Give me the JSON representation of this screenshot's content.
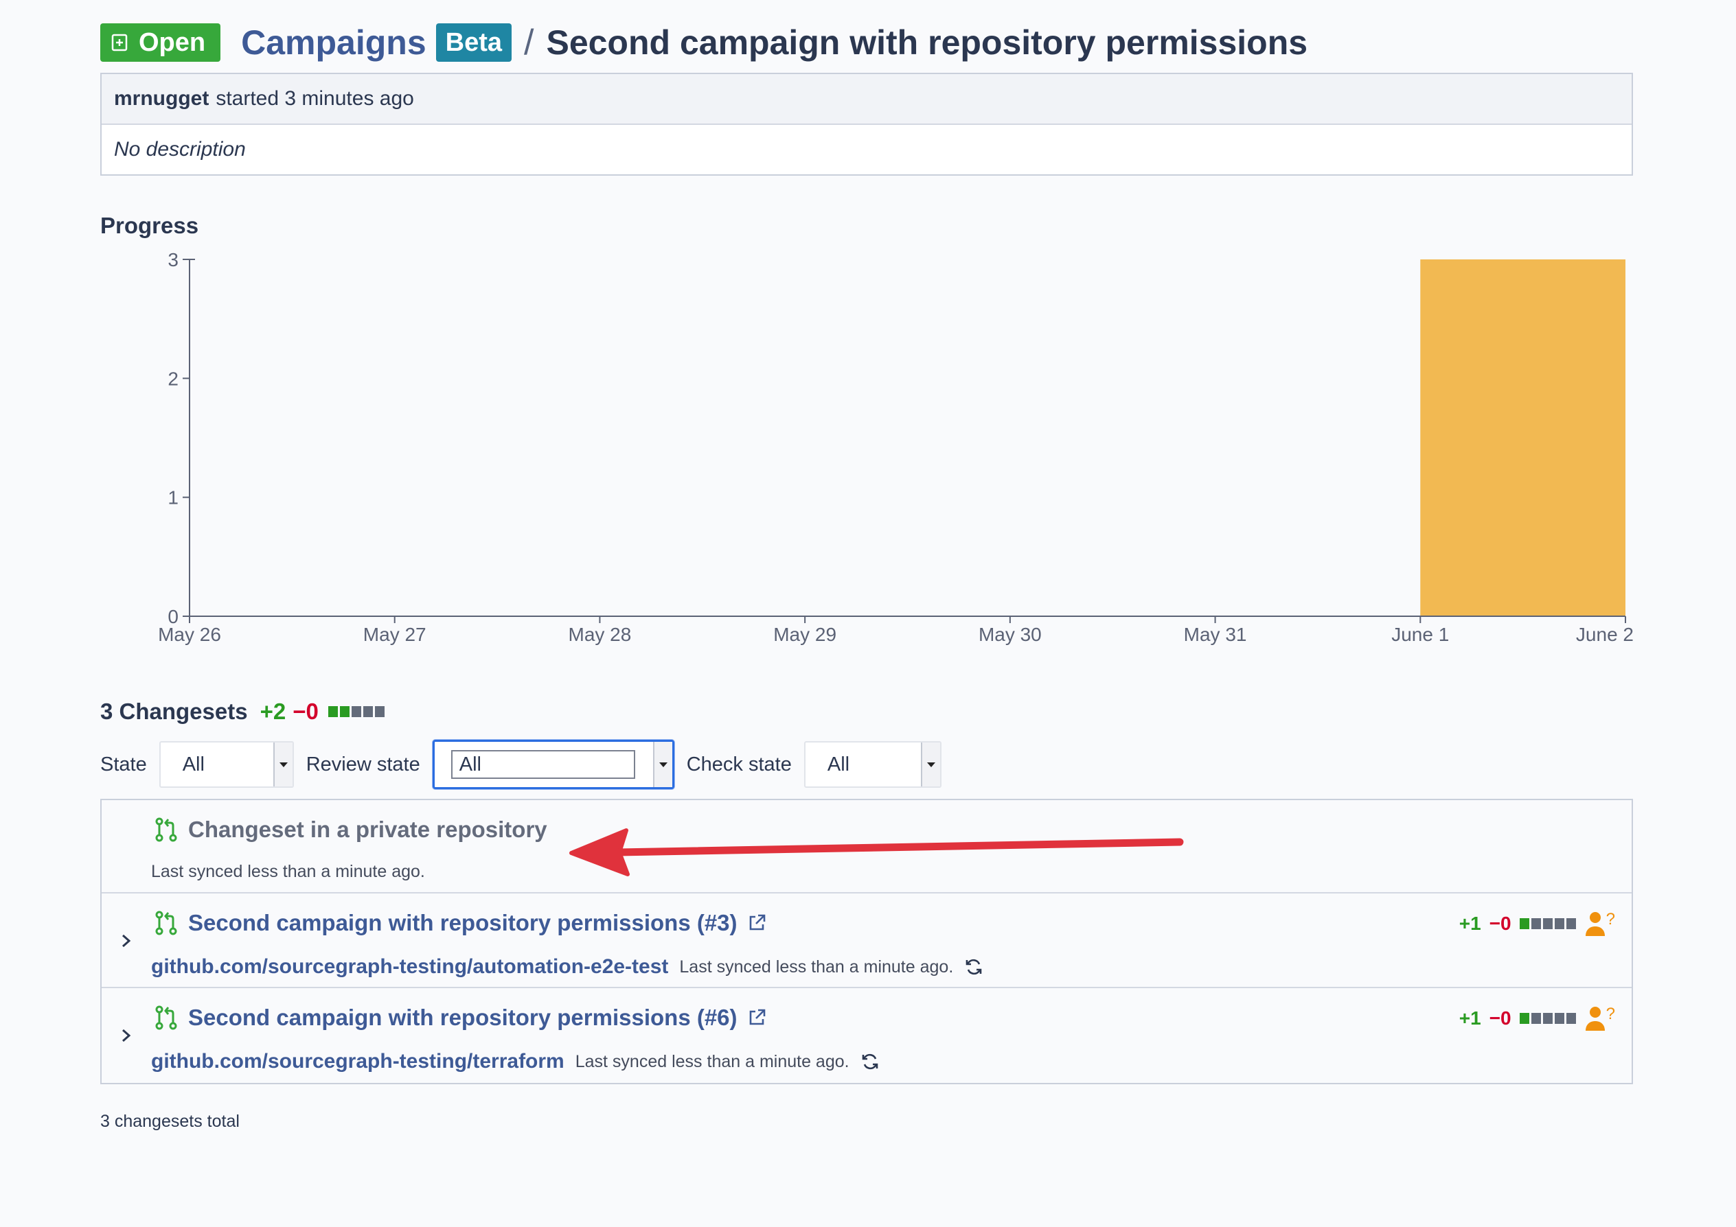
{
  "header": {
    "status_label": "Open",
    "breadcrumb_link": "Campaigns",
    "beta_label": "Beta",
    "separator": "/",
    "title": "Second campaign with repository permissions"
  },
  "info": {
    "author": "mrnugget",
    "started": "started 3 minutes ago",
    "description": "No description"
  },
  "progress": {
    "title": "Progress"
  },
  "chart_data": {
    "type": "bar",
    "title": "Progress",
    "xlabel": "",
    "ylabel": "",
    "x_ticks": [
      "May 26",
      "May 27",
      "May 28",
      "May 29",
      "May 30",
      "May 31",
      "June 1",
      "June 2"
    ],
    "y_ticks": [
      0,
      1,
      2,
      3
    ],
    "ylim": [
      0,
      3
    ],
    "grid": false,
    "series": [
      {
        "name": "",
        "color": "#f2b952",
        "bars": [
          {
            "x_start": "June 1",
            "x_end": "June 2",
            "value": 3
          }
        ]
      }
    ]
  },
  "changesets": {
    "count_label": "3 Changesets",
    "diff_add": "+2",
    "diff_del": "−0",
    "filters": [
      {
        "label": "State",
        "value": "All"
      },
      {
        "label": "Review state",
        "value": "All"
      },
      {
        "label": "Check state",
        "value": "All"
      }
    ],
    "items": [
      {
        "title": "Changeset in a private repository",
        "synced": "Last synced less than a minute ago."
      },
      {
        "title": "Second campaign with repository permissions (#3)",
        "repo": "github.com/sourcegraph-testing/automation-e2e-test",
        "synced": "Last synced less than a minute ago.",
        "diff_add": "+1",
        "diff_del": "−0",
        "review": "?"
      },
      {
        "title": "Second campaign with repository permissions (#6)",
        "repo": "github.com/sourcegraph-testing/terraform",
        "synced": "Last synced less than a minute ago.",
        "diff_add": "+1",
        "diff_del": "−0",
        "review": "?"
      }
    ],
    "total_label": "3 changesets total"
  },
  "colors": {
    "open_green": "#37a83b",
    "beta_teal": "#1f86a3",
    "link_blue": "#3e5a96",
    "bar_orange": "#f2b952",
    "add_green": "#2a9b22",
    "del_red": "#d3002b",
    "annotation_red": "#e0323c",
    "review_orange": "#f0910e"
  }
}
